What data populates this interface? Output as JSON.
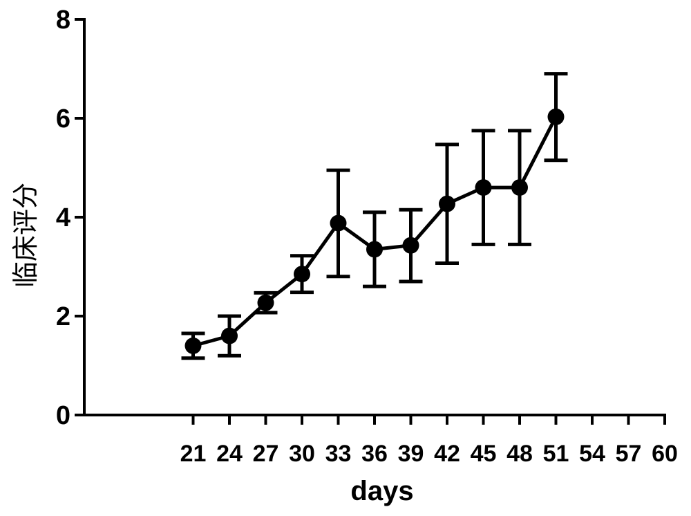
{
  "chart_data": {
    "type": "line",
    "title": "",
    "xlabel": "days",
    "ylabel": "临床评分",
    "x_ticks": [
      21,
      24,
      27,
      30,
      33,
      36,
      39,
      42,
      45,
      48,
      51,
      54,
      57,
      60
    ],
    "y_ticks": [
      0,
      2,
      4,
      6,
      8
    ],
    "xlim": [
      12,
      60
    ],
    "ylim": [
      0,
      8
    ],
    "grid": false,
    "series": [
      {
        "x": [
          21,
          24,
          27,
          30,
          33,
          36,
          39,
          42,
          45,
          48,
          51
        ],
        "y": [
          1.4,
          1.6,
          2.27,
          2.85,
          3.88,
          3.35,
          3.43,
          4.27,
          4.6,
          4.6,
          6.03
        ],
        "error_low": [
          1.15,
          1.2,
          2.07,
          2.48,
          2.8,
          2.6,
          2.7,
          3.07,
          3.45,
          3.45,
          5.15
        ],
        "error_high": [
          1.65,
          2.0,
          2.47,
          3.22,
          4.95,
          4.1,
          4.15,
          5.47,
          5.75,
          5.75,
          6.9
        ]
      }
    ],
    "colors": {
      "line": "#000000",
      "marker": "#000000"
    }
  }
}
